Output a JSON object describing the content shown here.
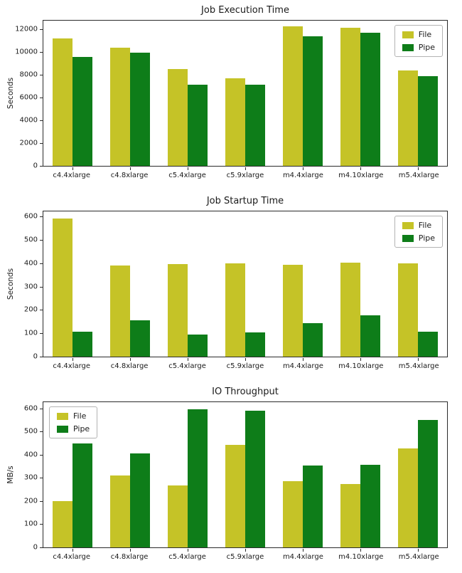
{
  "figure": {
    "background": "#ffffff",
    "series_colors": {
      "file": "#c5c327",
      "pipe": "#0e7d19"
    }
  },
  "chart_data": [
    {
      "type": "bar",
      "title": "Job Execution Time",
      "xlabel": "",
      "ylabel": "Seconds",
      "categories": [
        "c4.4xlarge",
        "c4.8xlarge",
        "c5.4xlarge",
        "c5.9xlarge",
        "m4.4xlarge",
        "m4.10xlarge",
        "m5.4xlarge"
      ],
      "series": [
        {
          "name": "File",
          "color": "#c5c327",
          "values": [
            11200,
            10400,
            8500,
            7700,
            12250,
            12100,
            8350
          ]
        },
        {
          "name": "Pipe",
          "color": "#0e7d19",
          "values": [
            9550,
            9950,
            7150,
            7150,
            11350,
            11700,
            7900
          ]
        }
      ],
      "ylim": [
        0,
        12750
      ],
      "yticks": [
        0,
        2000,
        4000,
        6000,
        8000,
        10000,
        12000
      ],
      "legend_position": "top-right",
      "grid": false
    },
    {
      "type": "bar",
      "title": "Job Startup Time",
      "xlabel": "",
      "ylabel": "Seconds",
      "categories": [
        "c4.4xlarge",
        "c4.8xlarge",
        "c5.4xlarge",
        "c5.9xlarge",
        "m4.4xlarge",
        "m4.10xlarge",
        "m5.4xlarge"
      ],
      "series": [
        {
          "name": "File",
          "color": "#c5c327",
          "values": [
            592,
            390,
            396,
            400,
            394,
            404,
            398
          ]
        },
        {
          "name": "Pipe",
          "color": "#0e7d19",
          "values": [
            107,
            157,
            95,
            104,
            143,
            177,
            107
          ]
        }
      ],
      "ylim": [
        0,
        622
      ],
      "yticks": [
        0,
        100,
        200,
        300,
        400,
        500,
        600
      ],
      "legend_position": "top-right",
      "grid": false
    },
    {
      "type": "bar",
      "title": "IO Throughput",
      "xlabel": "",
      "ylabel": "MB/s",
      "categories": [
        "c4.4xlarge",
        "c4.8xlarge",
        "c5.4xlarge",
        "c5.9xlarge",
        "m4.4xlarge",
        "m4.10xlarge",
        "m5.4xlarge"
      ],
      "series": [
        {
          "name": "File",
          "color": "#c5c327",
          "values": [
            200,
            312,
            268,
            443,
            287,
            273,
            426
          ]
        },
        {
          "name": "Pipe",
          "color": "#0e7d19",
          "values": [
            450,
            406,
            597,
            591,
            352,
            358,
            551
          ]
        }
      ],
      "ylim": [
        0,
        627
      ],
      "yticks": [
        0,
        100,
        200,
        300,
        400,
        500,
        600
      ],
      "legend_position": "top-left",
      "grid": false
    }
  ]
}
